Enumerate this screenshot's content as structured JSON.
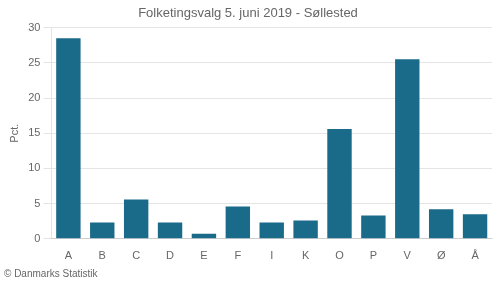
{
  "chart_data": {
    "type": "bar",
    "title": "Folketingsvalg 5. juni 2019 - Søllested",
    "categories": [
      "A",
      "B",
      "C",
      "D",
      "E",
      "F",
      "I",
      "K",
      "O",
      "P",
      "V",
      "Ø",
      "Å"
    ],
    "values": [
      28.5,
      2.3,
      5.6,
      2.3,
      0.7,
      4.6,
      2.3,
      2.6,
      15.6,
      3.3,
      25.5,
      4.2,
      3.5
    ],
    "color": "#1a6a8a",
    "ylabel": "Pct.",
    "annotations": [
      "© Danmarks Statistik"
    ],
    "ylim": [
      0,
      30
    ],
    "yticks": [
      0,
      5,
      10,
      15,
      20,
      25,
      30
    ],
    "grid": true
  }
}
